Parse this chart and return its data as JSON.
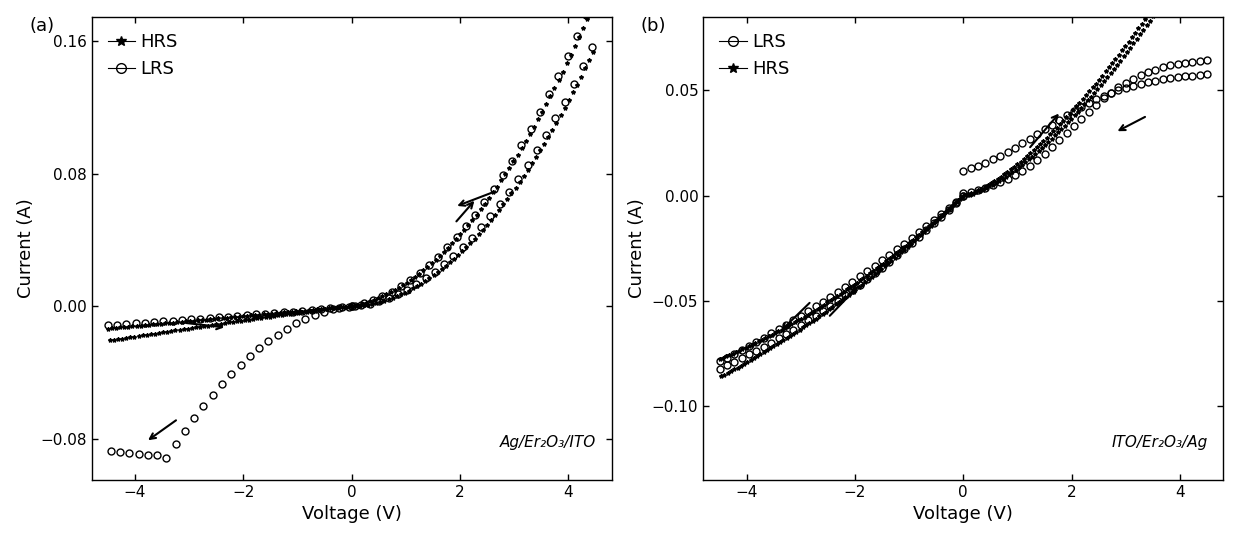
{
  "panel_a": {
    "label": "(a)",
    "xlabel": "Voltage (V)",
    "ylabel": "Current (A)",
    "xlim": [
      -4.8,
      4.8
    ],
    "ylim": [
      -0.105,
      0.175
    ],
    "yticks": [
      -0.08,
      0.0,
      0.08,
      0.16
    ],
    "xticks": [
      -4,
      -2,
      0,
      2,
      4
    ],
    "annotation": "Ag/Er₂O₃/ITO"
  },
  "panel_b": {
    "label": "(b)",
    "xlabel": "Voltage (V)",
    "ylabel": "Current (A)",
    "xlim": [
      -4.8,
      4.8
    ],
    "ylim": [
      -0.135,
      0.085
    ],
    "yticks": [
      -0.1,
      -0.05,
      0.0,
      0.05
    ],
    "xticks": [
      -4,
      -2,
      0,
      2,
      4
    ],
    "annotation": "ITO/Er₂O₃/Ag"
  },
  "background_color": "#ffffff"
}
